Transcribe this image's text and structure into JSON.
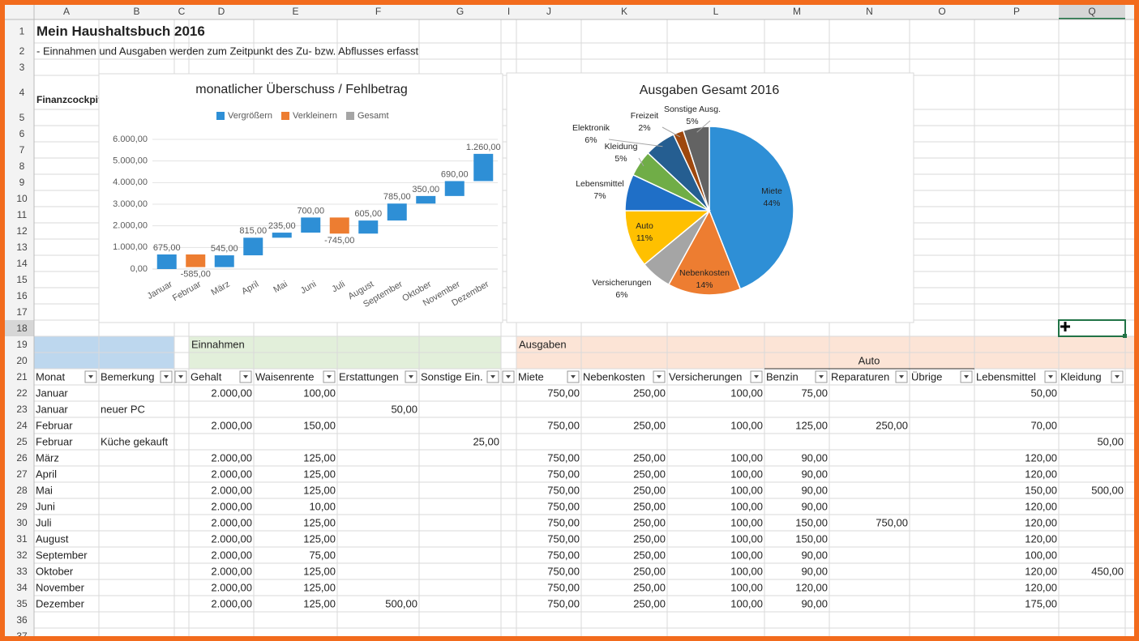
{
  "columns": [
    "A",
    "B",
    "C",
    "D",
    "E",
    "F",
    "G",
    "I",
    "J",
    "K",
    "L",
    "M",
    "N",
    "O",
    "P",
    "Q"
  ],
  "row_numbers": [
    1,
    2,
    3,
    4,
    5,
    6,
    7,
    8,
    9,
    10,
    11,
    12,
    13,
    14,
    15,
    16,
    17,
    18,
    19,
    20,
    21,
    22,
    23,
    24,
    25,
    26,
    27,
    28,
    29,
    30,
    31,
    32,
    33,
    34,
    35,
    36,
    37
  ],
  "title": "Mein Haushaltsbuch 2016",
  "subtitle": "- Einnahmen und Ausgaben werden zum Zeitpunkt des Zu- bzw. Abflusses erfasst",
  "cockpit_label": "Finanzcockpit",
  "groups": {
    "income": "Einnahmen",
    "expenses": "Ausgaben",
    "auto": "Auto"
  },
  "table": {
    "headers": [
      "Monat",
      "Bemerkung",
      "Gehalt",
      "Waisenrente",
      "Erstattungen",
      "Sonstige Ein.",
      "Miete",
      "Nebenkosten",
      "Versicherungen",
      "Benzin",
      "Reparaturen",
      "Übrige",
      "Lebensmittel",
      "Kleidung"
    ],
    "rows": [
      [
        "Januar",
        null,
        "2.000,00",
        "100,00",
        null,
        null,
        "750,00",
        "250,00",
        "100,00",
        "75,00",
        null,
        null,
        "50,00",
        null
      ],
      [
        "Januar",
        "neuer PC",
        null,
        null,
        "50,00",
        null,
        null,
        null,
        null,
        null,
        null,
        null,
        null,
        null
      ],
      [
        "Februar",
        null,
        "2.000,00",
        "150,00",
        null,
        null,
        "750,00",
        "250,00",
        "100,00",
        "125,00",
        "250,00",
        null,
        "70,00",
        null
      ],
      [
        "Februar",
        "Küche gekauft",
        null,
        null,
        null,
        "25,00",
        null,
        null,
        null,
        null,
        null,
        null,
        null,
        "50,00"
      ],
      [
        "März",
        null,
        "2.000,00",
        "125,00",
        null,
        null,
        "750,00",
        "250,00",
        "100,00",
        "90,00",
        null,
        null,
        "120,00",
        null
      ],
      [
        "April",
        null,
        "2.000,00",
        "125,00",
        null,
        null,
        "750,00",
        "250,00",
        "100,00",
        "90,00",
        null,
        null,
        "120,00",
        null
      ],
      [
        "Mai",
        null,
        "2.000,00",
        "125,00",
        null,
        null,
        "750,00",
        "250,00",
        "100,00",
        "90,00",
        null,
        null,
        "150,00",
        "500,00"
      ],
      [
        "Juni",
        null,
        "2.000,00",
        "10,00",
        null,
        null,
        "750,00",
        "250,00",
        "100,00",
        "90,00",
        null,
        null,
        "120,00",
        null
      ],
      [
        "Juli",
        null,
        "2.000,00",
        "125,00",
        null,
        null,
        "750,00",
        "250,00",
        "100,00",
        "150,00",
        "750,00",
        null,
        "120,00",
        null
      ],
      [
        "August",
        null,
        "2.000,00",
        "125,00",
        null,
        null,
        "750,00",
        "250,00",
        "100,00",
        "150,00",
        null,
        null,
        "120,00",
        null
      ],
      [
        "September",
        null,
        "2.000,00",
        "75,00",
        null,
        null,
        "750,00",
        "250,00",
        "100,00",
        "90,00",
        null,
        null,
        "100,00",
        null
      ],
      [
        "Oktober",
        null,
        "2.000,00",
        "125,00",
        null,
        null,
        "750,00",
        "250,00",
        "100,00",
        "90,00",
        null,
        null,
        "120,00",
        "450,00"
      ],
      [
        "November",
        null,
        "2.000,00",
        "125,00",
        null,
        null,
        "750,00",
        "250,00",
        "100,00",
        "120,00",
        null,
        null,
        "120,00",
        null
      ],
      [
        "Dezember",
        null,
        "2.000,00",
        "125,00",
        "500,00",
        null,
        "750,00",
        "250,00",
        "100,00",
        "90,00",
        null,
        null,
        "175,00",
        null
      ]
    ]
  },
  "chart_data": [
    {
      "type": "waterfall",
      "title": "monatlicher Überschuss / Fehlbetrag",
      "legend": [
        {
          "name": "Vergrößern",
          "color": "#2e8fd6"
        },
        {
          "name": "Verkleinern",
          "color": "#ed7d31"
        },
        {
          "name": "Gesamt",
          "color": "#a5a5a5"
        }
      ],
      "categories": [
        "Januar",
        "Februar",
        "März",
        "April",
        "Mai",
        "Juni",
        "Juli",
        "August",
        "September",
        "Oktober",
        "November",
        "Dezember"
      ],
      "values": [
        675,
        -585,
        545,
        815,
        235,
        700,
        -745,
        605,
        785,
        350,
        690,
        1260
      ],
      "value_labels": [
        "675,00",
        "-585,00",
        "545,00",
        "815,00",
        "235,00",
        "700,00",
        "-745,00",
        "605,00",
        "785,00",
        "350,00",
        "690,00",
        "1.260,00"
      ],
      "ylim": [
        0,
        6000
      ],
      "yticks": [
        {
          "value": 0,
          "label": "0,00"
        },
        {
          "value": 1000,
          "label": "1.000,00"
        },
        {
          "value": 2000,
          "label": "2.000,00"
        },
        {
          "value": 3000,
          "label": "3.000,00"
        },
        {
          "value": 4000,
          "label": "4.000,00"
        },
        {
          "value": 5000,
          "label": "5.000,00"
        },
        {
          "value": 6000,
          "label": "6.000,00"
        }
      ],
      "grid": true
    },
    {
      "type": "pie",
      "title": "Ausgaben Gesamt 2016",
      "categories": [
        "Miete",
        "Nebenkosten",
        "Versicherungen",
        "Auto",
        "Lebensmittel",
        "Kleidung",
        "Elektronik",
        "Freizeit",
        "Sonstige Ausg."
      ],
      "values": [
        44,
        14,
        6,
        11,
        7,
        5,
        6,
        2,
        5
      ],
      "value_labels": [
        "44%",
        "14%",
        "6%",
        "11%",
        "7%",
        "5%",
        "6%",
        "2%",
        "5%"
      ],
      "colors": [
        "#2e8fd6",
        "#ed7d31",
        "#a5a5a5",
        "#ffc000",
        "#1f6fc7",
        "#70ad47",
        "#255e91",
        "#9e480e",
        "#636363"
      ]
    }
  ]
}
